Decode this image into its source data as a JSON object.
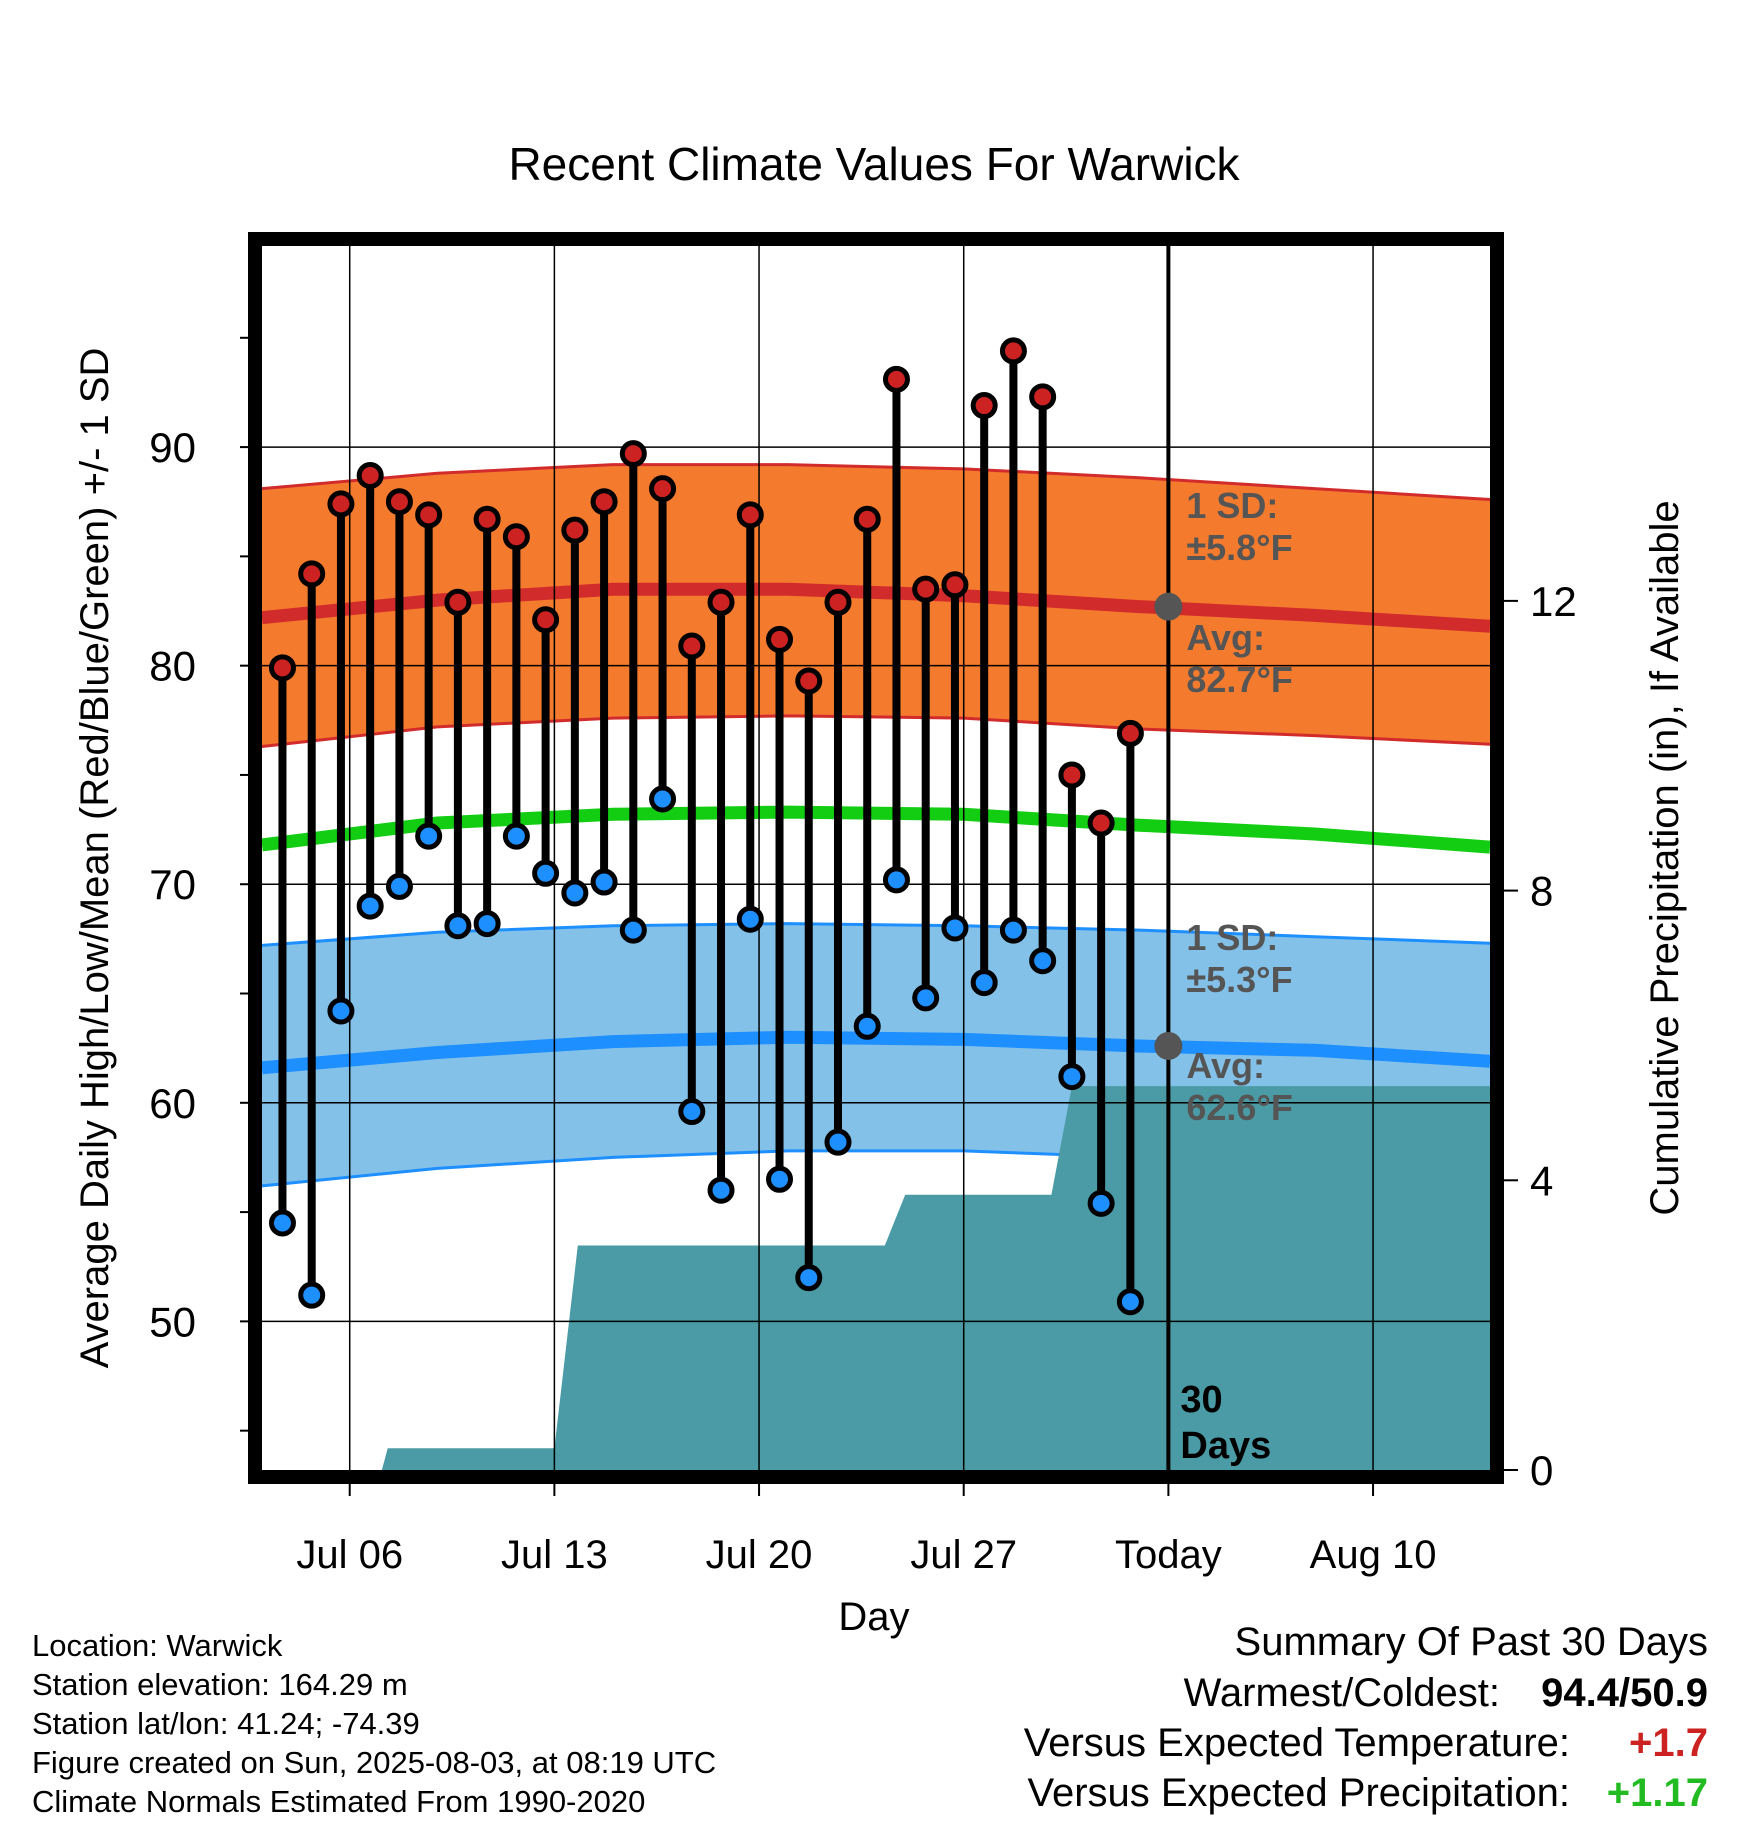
{
  "title": "Recent Climate Values For Warwick",
  "chart_data": {
    "type": "line",
    "title": "Recent Climate Values For Warwick",
    "xlabel": "Day",
    "ylabel_left": "Average Daily High/Low/Mean (Red/Blue/Green) +/- 1 SD",
    "ylabel_right": "Cumulative Precipitation (in), If Available",
    "ylim_left": [
      43.2,
      99.2
    ],
    "ylim_right": [
      0,
      16.9
    ],
    "xlim": [
      0,
      42
    ],
    "y_ticks_left": [
      "50",
      "60",
      "70",
      "80",
      "90"
    ],
    "y_ticks_right": [
      "0",
      "4",
      "8",
      "12"
    ],
    "x_ticks": [
      {
        "label": "Jul 06",
        "day": 3
      },
      {
        "label": "Jul 13",
        "day": 10
      },
      {
        "label": "Jul 20",
        "day": 17
      },
      {
        "label": "Jul 27",
        "day": 24
      },
      {
        "label": "Today",
        "day": 31
      },
      {
        "label": "Aug 10",
        "day": 38
      }
    ],
    "today_day": 31,
    "grid": true,
    "today_label": "30\nDays",
    "days": [
      0.7,
      1.7,
      2.7,
      3.7,
      4.7,
      5.7,
      6.7,
      7.7,
      8.7,
      9.7,
      10.7,
      11.7,
      12.7,
      13.7,
      14.7,
      15.7,
      16.7,
      17.7,
      18.7,
      19.7,
      20.7,
      21.7,
      22.7,
      23.7,
      24.7,
      25.7,
      26.7,
      27.7,
      28.7,
      29.7
    ],
    "highs": [
      79.9,
      84.2,
      87.4,
      88.7,
      87.5,
      86.9,
      82.9,
      86.7,
      85.9,
      82.1,
      86.2,
      87.5,
      89.7,
      88.1,
      80.9,
      82.9,
      86.9,
      81.2,
      79.3,
      82.9,
      86.7,
      93.1,
      83.5,
      83.7,
      91.9,
      94.4,
      92.3,
      75.0,
      72.8,
      76.9
    ],
    "lows": [
      54.5,
      51.2,
      64.2,
      69.0,
      69.9,
      72.2,
      68.1,
      68.2,
      72.2,
      70.5,
      69.6,
      70.1,
      67.9,
      73.9,
      59.6,
      56.0,
      68.4,
      56.5,
      52.0,
      58.2,
      63.5,
      70.2,
      64.8,
      68.0,
      65.5,
      67.9,
      66.5,
      61.2,
      55.4,
      50.9
    ],
    "normals": {
      "x": [
        0,
        6,
        12,
        18,
        24,
        30,
        36,
        42
      ],
      "high_avg": [
        82.2,
        83.0,
        83.5,
        83.5,
        83.2,
        82.7,
        82.3,
        81.8
      ],
      "high_upper": [
        88.1,
        88.8,
        89.2,
        89.2,
        89.0,
        88.6,
        88.1,
        87.6
      ],
      "high_lower": [
        76.3,
        77.2,
        77.6,
        77.7,
        77.6,
        77.1,
        76.8,
        76.4
      ],
      "mean": [
        71.8,
        72.8,
        73.2,
        73.3,
        73.2,
        72.7,
        72.3,
        71.7
      ],
      "low_avg": [
        61.6,
        62.3,
        62.8,
        63.0,
        62.9,
        62.6,
        62.4,
        61.9
      ],
      "low_upper": [
        67.2,
        67.8,
        68.1,
        68.2,
        68.1,
        67.9,
        67.6,
        67.3
      ],
      "low_lower": [
        56.2,
        57.0,
        57.5,
        57.8,
        57.8,
        57.5,
        57.2,
        56.7
      ]
    },
    "precip": {
      "x": [
        0,
        4.1,
        4.3,
        10.0,
        10.8,
        21.3,
        22.0,
        27.0,
        27.7,
        42
      ],
      "y": [
        0,
        0,
        0.3,
        0.3,
        3.1,
        3.1,
        3.8,
        3.8,
        5.3,
        5.3
      ]
    },
    "annotations": {
      "high_sd": {
        "line1": "1 SD:",
        "line2": "±5.8°F"
      },
      "high_avg": {
        "line1": "Avg:",
        "line2": "82.7°F",
        "value": 82.7
      },
      "low_sd": {
        "line1": "1 SD:",
        "line2": "±5.3°F"
      },
      "low_avg": {
        "line1": "Avg:",
        "line2": "62.6°F",
        "value": 62.6
      }
    },
    "colors": {
      "high_band": "#f47a2e",
      "high_line": "#d22b2b",
      "mean_line": "#13cd13",
      "low_band": "#84c1e8",
      "low_line": "#1e8fff",
      "precip": "#4a9ba5",
      "high_marker": "#cc2222",
      "low_marker": "#1e8fff",
      "avg_dot": "#555555",
      "annotation_text": "#555555"
    }
  },
  "info": {
    "location": "Location: Warwick",
    "elevation": "Station elevation: 164.29 m",
    "latlon": "Station lat/lon: 41.24; -74.39",
    "created": "Figure created on Sun, 2025-08-03, at 08:19 UTC",
    "normals": "Climate Normals Estimated From 1990-2020"
  },
  "summary": {
    "title": "Summary Of Past 30 Days",
    "warmest_label": "Warmest/Coldest:",
    "warmest_value": "94.4/50.9",
    "temp_label": "Versus Expected Temperature:",
    "temp_value": "+1.7",
    "temp_color": "#cc2222",
    "precip_label": "Versus Expected Precipitation:",
    "precip_value": "+1.17",
    "precip_color": "#22bb22"
  }
}
